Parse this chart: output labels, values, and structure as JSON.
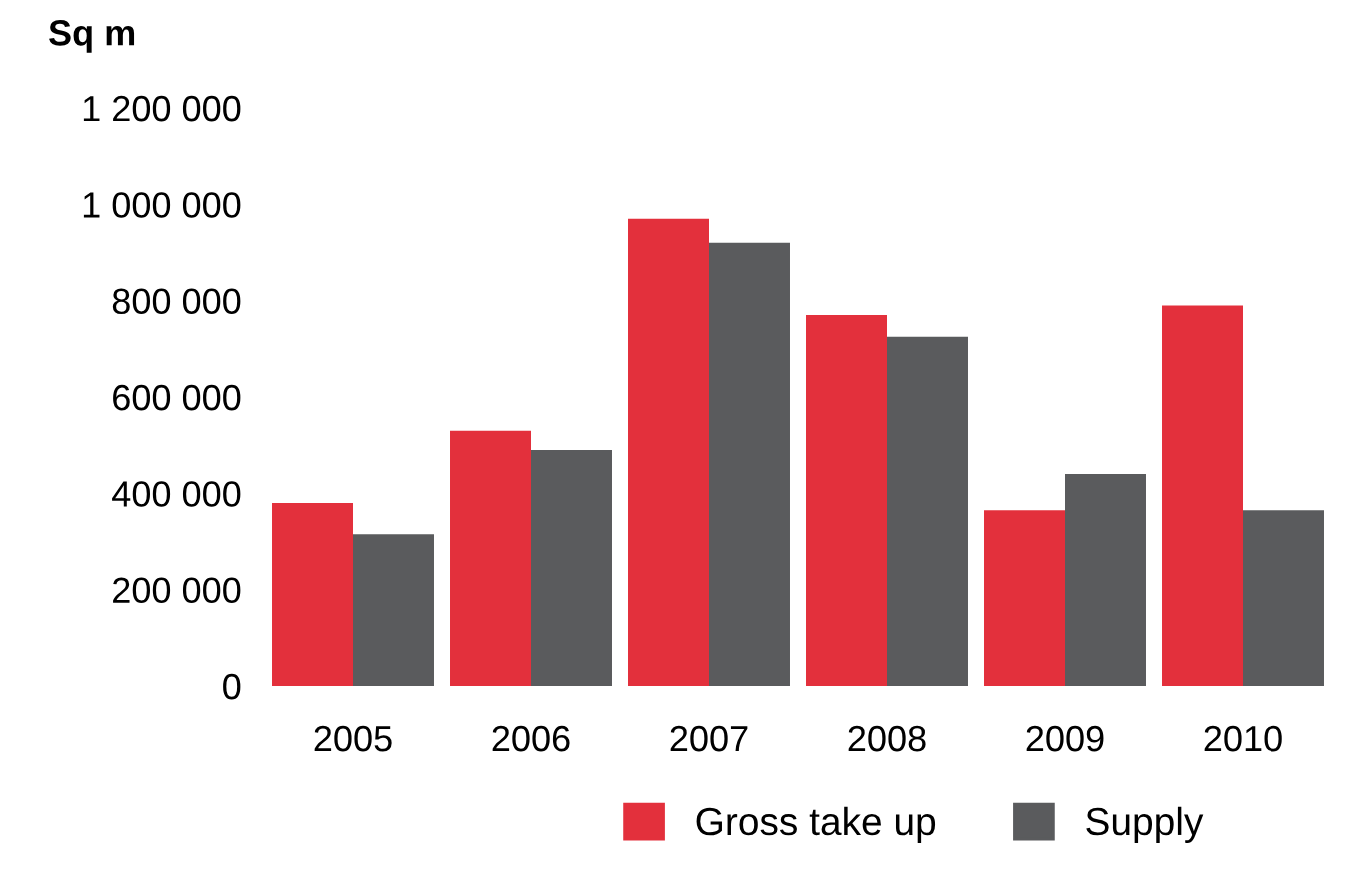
{
  "chart_data": {
    "type": "bar",
    "ylabel": "Sq m",
    "categories": [
      "2005",
      "2006",
      "2007",
      "2008",
      "2009",
      "2010"
    ],
    "series": [
      {
        "name": "Gross take up",
        "color": "#e3303c",
        "values": [
          380000,
          530000,
          970000,
          770000,
          365000,
          790000
        ]
      },
      {
        "name": "Supply",
        "color": "#5a5b5d",
        "values": [
          315000,
          490000,
          920000,
          725000,
          440000,
          365000
        ]
      }
    ],
    "ylim": [
      0,
      1200000
    ],
    "yticks": [
      {
        "value": 0,
        "label": "0"
      },
      {
        "value": 200000,
        "label": "200 000"
      },
      {
        "value": 400000,
        "label": "400 000"
      },
      {
        "value": 600000,
        "label": "600 000"
      },
      {
        "value": 800000,
        "label": "800 000"
      },
      {
        "value": 1000000,
        "label": "1 000 000"
      },
      {
        "value": 1200000,
        "label": "1 200 000"
      }
    ],
    "grid": false,
    "legend": "bottom"
  }
}
